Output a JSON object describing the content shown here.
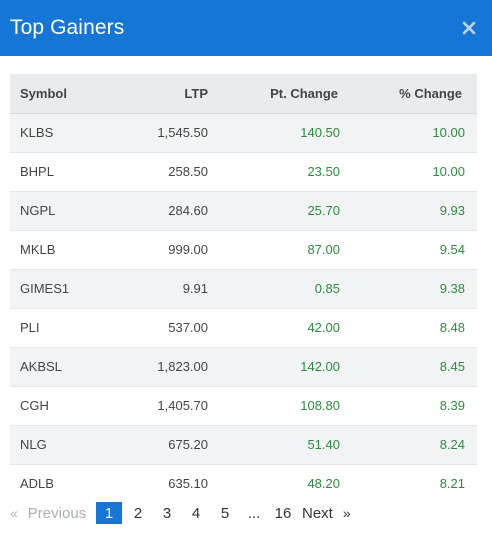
{
  "header": {
    "title": "Top Gainers",
    "close_icon": "close-icon"
  },
  "table": {
    "columns": [
      "Symbol",
      "LTP",
      "Pt. Change",
      "% Change"
    ],
    "rows": [
      {
        "symbol": "KLBS",
        "ltp": "1,545.50",
        "pt_change": "140.50",
        "pct_change": "10.00"
      },
      {
        "symbol": "BHPL",
        "ltp": "258.50",
        "pt_change": "23.50",
        "pct_change": "10.00"
      },
      {
        "symbol": "NGPL",
        "ltp": "284.60",
        "pt_change": "25.70",
        "pct_change": "9.93"
      },
      {
        "symbol": "MKLB",
        "ltp": "999.00",
        "pt_change": "87.00",
        "pct_change": "9.54"
      },
      {
        "symbol": "GIMES1",
        "ltp": "9.91",
        "pt_change": "0.85",
        "pct_change": "9.38"
      },
      {
        "symbol": "PLI",
        "ltp": "537.00",
        "pt_change": "42.00",
        "pct_change": "8.48"
      },
      {
        "symbol": "AKBSL",
        "ltp": "1,823.00",
        "pt_change": "142.00",
        "pct_change": "8.45"
      },
      {
        "symbol": "CGH",
        "ltp": "1,405.70",
        "pt_change": "108.80",
        "pct_change": "8.39"
      },
      {
        "symbol": "NLG",
        "ltp": "675.20",
        "pt_change": "51.40",
        "pct_change": "8.24"
      },
      {
        "symbol": "ADLB",
        "ltp": "635.10",
        "pt_change": "48.20",
        "pct_change": "8.21"
      }
    ]
  },
  "pagination": {
    "prev_arrow": "«",
    "prev_label": "Previous",
    "pages": [
      "1",
      "2",
      "3",
      "4",
      "5"
    ],
    "ellipsis": "...",
    "last_page": "16",
    "next_label": "Next",
    "next_arrow": "»",
    "active_page": "1"
  },
  "colors": {
    "header_bg": "#1676d6",
    "gain_text": "#2e8b3e",
    "active_page_bg": "#1676d6"
  }
}
